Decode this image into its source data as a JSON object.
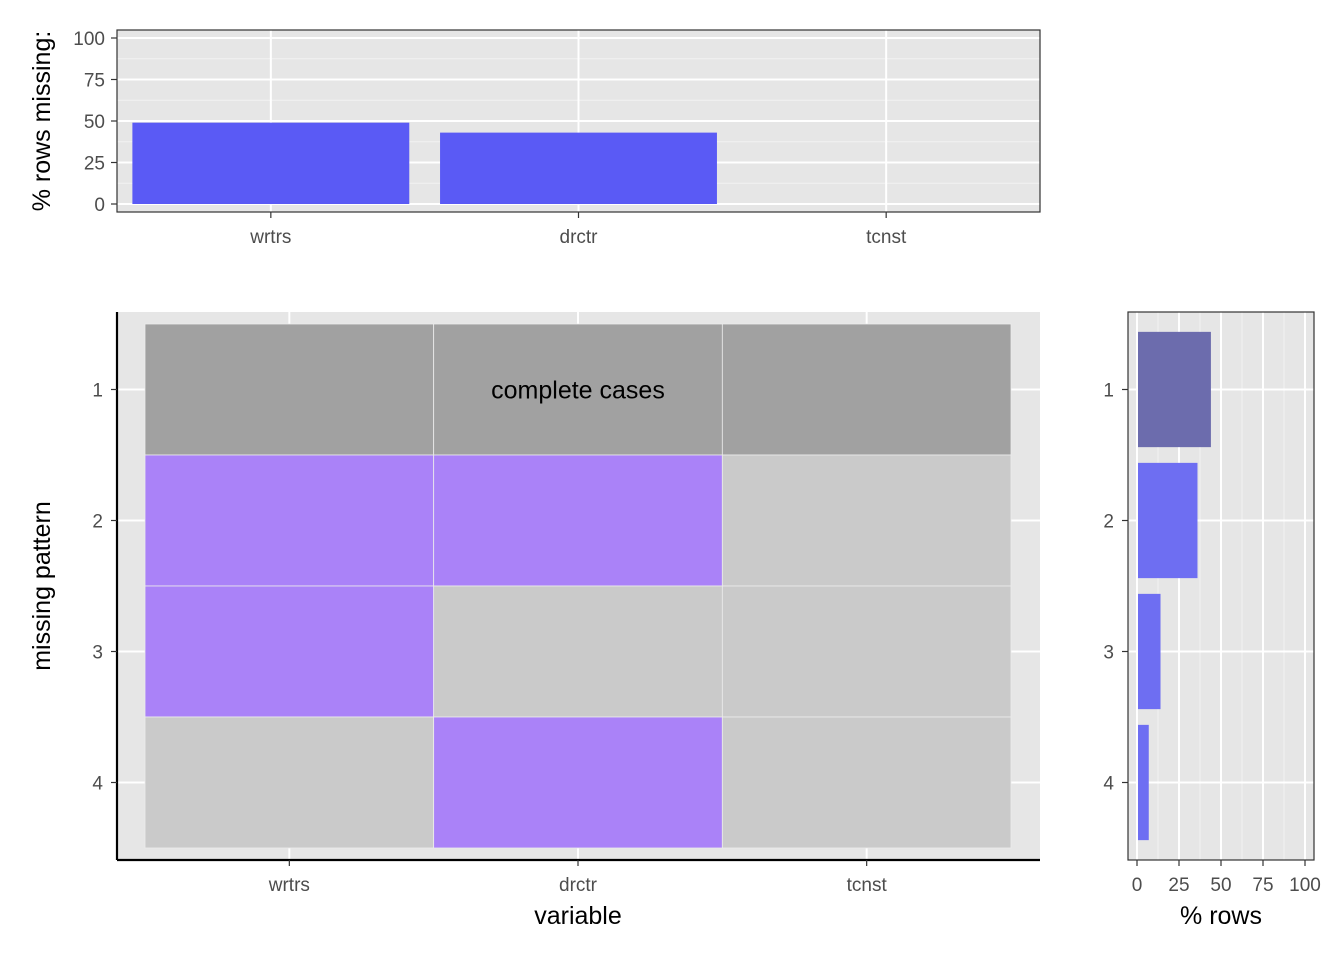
{
  "chart_data": [
    {
      "type": "bar",
      "categories": [
        "wrtrs",
        "drctr",
        "tcnst"
      ],
      "values": [
        49,
        43,
        0
      ],
      "ylabel": "% rows missing:",
      "ylim": [
        0,
        100
      ],
      "yticks": [
        "0",
        "25",
        "50",
        "75",
        "100"
      ],
      "grid": true,
      "colors": {
        "bar": "#5a5af5",
        "panel": "#e6e6e6",
        "grid": "#ffffff"
      }
    },
    {
      "type": "heatmap",
      "x": [
        "wrtrs",
        "drctr",
        "tcnst"
      ],
      "y": [
        "1",
        "2",
        "3",
        "4"
      ],
      "values": [
        [
          0,
          0,
          0
        ],
        [
          1,
          1,
          0
        ],
        [
          1,
          0,
          0
        ],
        [
          0,
          1,
          0
        ]
      ],
      "xlabel": "variable",
      "ylabel": "missing pattern",
      "annotations": [
        {
          "row": "1",
          "text": "complete cases"
        }
      ],
      "colors": {
        "complete": "#9e9e9e",
        "missing": "#a77ef8",
        "present": "#c8c8c8"
      }
    },
    {
      "type": "bar",
      "orientation": "horizontal",
      "categories": [
        "1",
        "2",
        "3",
        "4"
      ],
      "values": [
        44,
        36,
        14,
        7
      ],
      "xlabel": "% rows",
      "xlim": [
        0,
        100
      ],
      "xticks": [
        "0",
        "25",
        "50",
        "75",
        "100"
      ],
      "grid": true,
      "colors": {
        "complete": "#6c6cad",
        "bar": "#6e6ef2"
      }
    }
  ]
}
